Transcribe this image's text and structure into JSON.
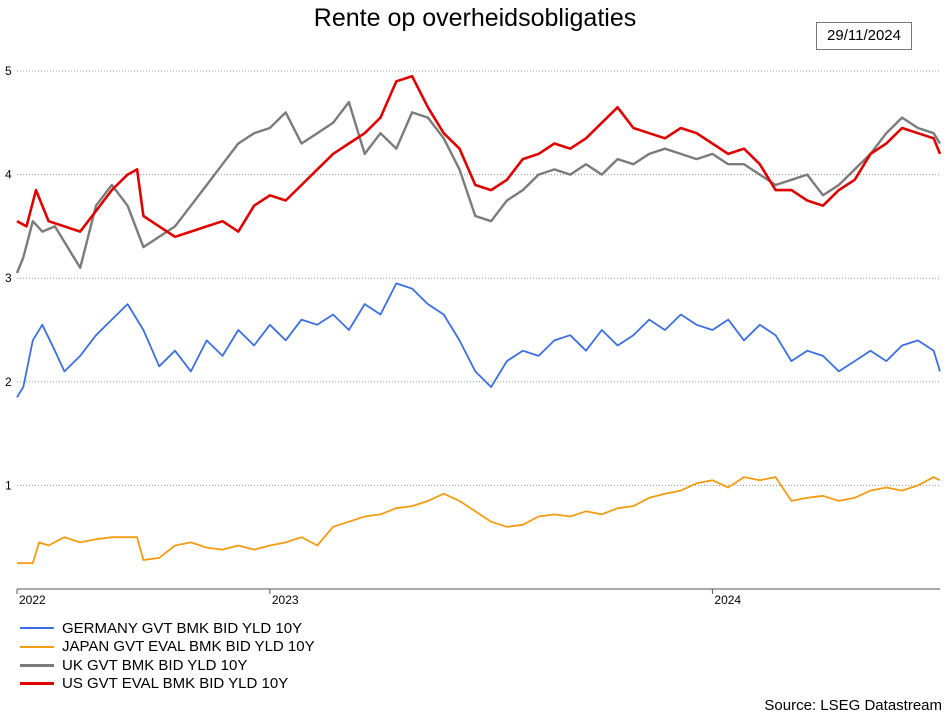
{
  "chart_data": {
    "type": "line",
    "title": "Rente op overheidsobligaties",
    "date_badge": "29/11/2024",
    "source": "Source: LSEG Datastream",
    "xlabel": "",
    "ylabel": "",
    "ylim": [
      0,
      5
    ],
    "yticks": [
      1,
      2,
      3,
      4,
      5
    ],
    "xlim": [
      2022.0,
      2024.92
    ],
    "xticks": [
      {
        "label": "2022",
        "x": 2022.0
      },
      {
        "label": "2023",
        "x": 2022.8
      },
      {
        "label": "2024",
        "x": 2024.2
      }
    ],
    "grid": "horizontal dotted",
    "legend_position": "bottom-left",
    "series": [
      {
        "name": "GERMANY GVT BMK BID YLD 10Y",
        "color": "#3b6fe0",
        "x": [
          2022.0,
          2022.02,
          2022.05,
          2022.08,
          2022.12,
          2022.15,
          2022.2,
          2022.25,
          2022.3,
          2022.35,
          2022.4,
          2022.45,
          2022.5,
          2022.55,
          2022.6,
          2022.65,
          2022.7,
          2022.75,
          2022.8,
          2022.85,
          2022.9,
          2022.95,
          2023.0,
          2023.05,
          2023.1,
          2023.15,
          2023.2,
          2023.25,
          2023.3,
          2023.35,
          2023.4,
          2023.45,
          2023.5,
          2023.55,
          2023.6,
          2023.65,
          2023.7,
          2023.75,
          2023.8,
          2023.85,
          2023.9,
          2023.95,
          2024.0,
          2024.05,
          2024.1,
          2024.15,
          2024.2,
          2024.25,
          2024.3,
          2024.35,
          2024.4,
          2024.45,
          2024.5,
          2024.55,
          2024.6,
          2024.65,
          2024.7,
          2024.75,
          2024.8,
          2024.85,
          2024.9,
          2024.92
        ],
        "values": [
          1.85,
          1.95,
          2.4,
          2.55,
          2.3,
          2.1,
          2.25,
          2.45,
          2.6,
          2.75,
          2.5,
          2.15,
          2.3,
          2.1,
          2.4,
          2.25,
          2.5,
          2.35,
          2.55,
          2.4,
          2.6,
          2.55,
          2.65,
          2.5,
          2.75,
          2.65,
          2.95,
          2.9,
          2.75,
          2.65,
          2.4,
          2.1,
          1.95,
          2.2,
          2.3,
          2.25,
          2.4,
          2.45,
          2.3,
          2.5,
          2.35,
          2.45,
          2.6,
          2.5,
          2.65,
          2.55,
          2.5,
          2.6,
          2.4,
          2.55,
          2.45,
          2.2,
          2.3,
          2.25,
          2.1,
          2.2,
          2.3,
          2.2,
          2.35,
          2.4,
          2.3,
          2.1
        ]
      },
      {
        "name": "JAPAN GVT EVAL BMK BID YLD 10Y",
        "color": "#f39c12",
        "x": [
          2022.0,
          2022.05,
          2022.07,
          2022.1,
          2022.15,
          2022.2,
          2022.25,
          2022.3,
          2022.35,
          2022.38,
          2022.4,
          2022.45,
          2022.5,
          2022.55,
          2022.6,
          2022.65,
          2022.7,
          2022.75,
          2022.8,
          2022.85,
          2022.9,
          2022.95,
          2023.0,
          2023.05,
          2023.1,
          2023.15,
          2023.2,
          2023.25,
          2023.3,
          2023.35,
          2023.4,
          2023.45,
          2023.5,
          2023.55,
          2023.6,
          2023.65,
          2023.7,
          2023.75,
          2023.8,
          2023.85,
          2023.9,
          2023.95,
          2024.0,
          2024.05,
          2024.1,
          2024.15,
          2024.2,
          2024.25,
          2024.3,
          2024.35,
          2024.4,
          2024.45,
          2024.5,
          2024.55,
          2024.6,
          2024.65,
          2024.7,
          2024.75,
          2024.8,
          2024.85,
          2024.9,
          2024.92
        ],
        "values": [
          0.25,
          0.25,
          0.45,
          0.42,
          0.5,
          0.45,
          0.48,
          0.5,
          0.5,
          0.5,
          0.28,
          0.3,
          0.42,
          0.45,
          0.4,
          0.38,
          0.42,
          0.38,
          0.42,
          0.45,
          0.5,
          0.42,
          0.6,
          0.65,
          0.7,
          0.72,
          0.78,
          0.8,
          0.85,
          0.92,
          0.85,
          0.75,
          0.65,
          0.6,
          0.62,
          0.7,
          0.72,
          0.7,
          0.75,
          0.72,
          0.78,
          0.8,
          0.88,
          0.92,
          0.95,
          1.02,
          1.05,
          0.98,
          1.08,
          1.05,
          1.08,
          0.85,
          0.88,
          0.9,
          0.85,
          0.88,
          0.95,
          0.98,
          0.95,
          1.0,
          1.08,
          1.05
        ]
      },
      {
        "name": "UK GVT BMK BID YLD 10Y",
        "color": "#7b7b7b",
        "x": [
          2022.0,
          2022.02,
          2022.05,
          2022.08,
          2022.12,
          2022.15,
          2022.18,
          2022.2,
          2022.25,
          2022.3,
          2022.35,
          2022.4,
          2022.45,
          2022.5,
          2022.55,
          2022.6,
          2022.65,
          2022.7,
          2022.75,
          2022.8,
          2022.85,
          2022.9,
          2022.95,
          2023.0,
          2023.05,
          2023.1,
          2023.15,
          2023.2,
          2023.25,
          2023.3,
          2023.35,
          2023.4,
          2023.45,
          2023.5,
          2023.55,
          2023.6,
          2023.65,
          2023.7,
          2023.75,
          2023.8,
          2023.85,
          2023.9,
          2023.95,
          2024.0,
          2024.05,
          2024.1,
          2024.15,
          2024.2,
          2024.25,
          2024.3,
          2024.35,
          2024.4,
          2024.45,
          2024.5,
          2024.55,
          2024.6,
          2024.65,
          2024.7,
          2024.75,
          2024.8,
          2024.85,
          2024.9,
          2024.92
        ],
        "values": [
          3.05,
          3.2,
          3.55,
          3.45,
          3.5,
          3.35,
          3.2,
          3.1,
          3.7,
          3.9,
          3.7,
          3.3,
          3.4,
          3.5,
          3.7,
          3.9,
          4.1,
          4.3,
          4.4,
          4.45,
          4.6,
          4.3,
          4.4,
          4.5,
          4.7,
          4.2,
          4.4,
          4.25,
          4.6,
          4.55,
          4.35,
          4.05,
          3.6,
          3.55,
          3.75,
          3.85,
          4.0,
          4.05,
          4.0,
          4.1,
          4.0,
          4.15,
          4.1,
          4.2,
          4.25,
          4.2,
          4.15,
          4.2,
          4.1,
          4.1,
          4.0,
          3.9,
          3.95,
          4.0,
          3.8,
          3.9,
          4.05,
          4.2,
          4.4,
          4.55,
          4.45,
          4.4,
          4.3
        ]
      },
      {
        "name": "US GVT EVAL BMK BID YLD 10Y",
        "color": "#e00000",
        "x": [
          2022.0,
          2022.03,
          2022.06,
          2022.1,
          2022.15,
          2022.2,
          2022.25,
          2022.3,
          2022.35,
          2022.38,
          2022.4,
          2022.45,
          2022.5,
          2022.55,
          2022.6,
          2022.65,
          2022.7,
          2022.75,
          2022.8,
          2022.85,
          2022.9,
          2022.95,
          2023.0,
          2023.05,
          2023.1,
          2023.15,
          2023.2,
          2023.25,
          2023.3,
          2023.35,
          2023.4,
          2023.45,
          2023.5,
          2023.55,
          2023.6,
          2023.65,
          2023.7,
          2023.75,
          2023.8,
          2023.85,
          2023.9,
          2023.95,
          2024.0,
          2024.05,
          2024.1,
          2024.15,
          2024.2,
          2024.25,
          2024.3,
          2024.35,
          2024.4,
          2024.45,
          2024.5,
          2024.55,
          2024.6,
          2024.65,
          2024.7,
          2024.75,
          2024.8,
          2024.85,
          2024.9,
          2024.92
        ],
        "values": [
          3.55,
          3.5,
          3.85,
          3.55,
          3.5,
          3.45,
          3.65,
          3.85,
          4.0,
          4.05,
          3.6,
          3.5,
          3.4,
          3.45,
          3.5,
          3.55,
          3.45,
          3.7,
          3.8,
          3.75,
          3.9,
          4.05,
          4.2,
          4.3,
          4.4,
          4.55,
          4.9,
          4.95,
          4.65,
          4.4,
          4.25,
          3.9,
          3.85,
          3.95,
          4.15,
          4.2,
          4.3,
          4.25,
          4.35,
          4.5,
          4.65,
          4.45,
          4.4,
          4.35,
          4.45,
          4.4,
          4.3,
          4.2,
          4.25,
          4.1,
          3.85,
          3.85,
          3.75,
          3.7,
          3.85,
          3.95,
          4.2,
          4.3,
          4.45,
          4.4,
          4.35,
          4.2
        ]
      }
    ]
  }
}
